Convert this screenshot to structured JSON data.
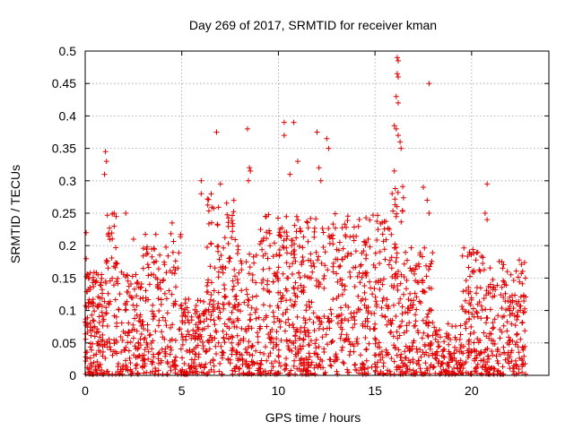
{
  "chart_data": {
    "type": "scatter",
    "title": "Day 269 of 2017, SRMTID for receiver kman",
    "xlabel": "GPS time / hours",
    "ylabel": "SRMTID / TECUs",
    "xlim": [
      0,
      24
    ],
    "ylim": [
      0,
      0.5
    ],
    "xticks": [
      0,
      5,
      10,
      15,
      20
    ],
    "yticks": [
      0,
      0.05,
      0.1,
      0.15,
      0.2,
      0.25,
      0.3,
      0.35,
      0.4,
      0.45,
      0.5
    ],
    "grid": true,
    "marker": "+",
    "color": "#e00000",
    "seed": 269,
    "series": [
      {
        "name": "SRMTID",
        "generated_clusters_note": "dense point cloud generated from these cluster descriptors",
        "clusters": [
          {
            "x0": 0.0,
            "x1": 1.0,
            "ymax": 0.16,
            "n": 140
          },
          {
            "x0": 1.0,
            "x1": 1.8,
            "ymax": 0.25,
            "n": 70
          },
          {
            "x0": 1.8,
            "x1": 3.0,
            "ymax": 0.16,
            "n": 110
          },
          {
            "x0": 3.0,
            "x1": 5.0,
            "ymax": 0.22,
            "n": 170
          },
          {
            "x0": 5.0,
            "x1": 6.2,
            "ymax": 0.12,
            "n": 110
          },
          {
            "x0": 6.2,
            "x1": 7.8,
            "ymax": 0.28,
            "n": 170
          },
          {
            "x0": 7.8,
            "x1": 9.0,
            "ymax": 0.2,
            "n": 110
          },
          {
            "x0": 9.0,
            "x1": 12.0,
            "ymax": 0.25,
            "n": 330
          },
          {
            "x0": 12.0,
            "x1": 15.8,
            "ymax": 0.25,
            "n": 330
          },
          {
            "x0": 15.8,
            "x1": 16.5,
            "ymax": 0.3,
            "n": 80
          },
          {
            "x0": 16.5,
            "x1": 18.0,
            "ymax": 0.2,
            "n": 150
          },
          {
            "x0": 18.0,
            "x1": 19.5,
            "ymax": 0.08,
            "n": 100
          },
          {
            "x0": 19.5,
            "x1": 21.0,
            "ymax": 0.2,
            "n": 150
          },
          {
            "x0": 21.0,
            "x1": 22.8,
            "ymax": 0.18,
            "n": 170
          }
        ],
        "highlights": [
          {
            "x": 0.05,
            "y": 0.22
          },
          {
            "x": 0.05,
            "y": 0.18
          },
          {
            "x": 1.05,
            "y": 0.345
          },
          {
            "x": 1.1,
            "y": 0.33
          },
          {
            "x": 1.0,
            "y": 0.31
          },
          {
            "x": 1.5,
            "y": 0.25
          },
          {
            "x": 1.6,
            "y": 0.245
          },
          {
            "x": 1.5,
            "y": 0.23
          },
          {
            "x": 2.1,
            "y": 0.25
          },
          {
            "x": 2.5,
            "y": 0.21
          },
          {
            "x": 4.5,
            "y": 0.235
          },
          {
            "x": 6.0,
            "y": 0.3
          },
          {
            "x": 6.0,
            "y": 0.28
          },
          {
            "x": 6.8,
            "y": 0.375
          },
          {
            "x": 7.0,
            "y": 0.295
          },
          {
            "x": 8.4,
            "y": 0.38
          },
          {
            "x": 8.5,
            "y": 0.32
          },
          {
            "x": 8.55,
            "y": 0.315
          },
          {
            "x": 8.45,
            "y": 0.3
          },
          {
            "x": 10.3,
            "y": 0.39
          },
          {
            "x": 10.8,
            "y": 0.39
          },
          {
            "x": 10.3,
            "y": 0.37
          },
          {
            "x": 10.6,
            "y": 0.31
          },
          {
            "x": 11.0,
            "y": 0.33
          },
          {
            "x": 12.0,
            "y": 0.375
          },
          {
            "x": 12.5,
            "y": 0.365
          },
          {
            "x": 12.6,
            "y": 0.35
          },
          {
            "x": 12.1,
            "y": 0.32
          },
          {
            "x": 12.2,
            "y": 0.3
          },
          {
            "x": 16.15,
            "y": 0.49
          },
          {
            "x": 16.2,
            "y": 0.485
          },
          {
            "x": 16.15,
            "y": 0.465
          },
          {
            "x": 16.2,
            "y": 0.46
          },
          {
            "x": 16.1,
            "y": 0.43
          },
          {
            "x": 16.2,
            "y": 0.42
          },
          {
            "x": 16.0,
            "y": 0.385
          },
          {
            "x": 16.1,
            "y": 0.38
          },
          {
            "x": 16.2,
            "y": 0.37
          },
          {
            "x": 16.3,
            "y": 0.36
          },
          {
            "x": 16.35,
            "y": 0.35
          },
          {
            "x": 16.0,
            "y": 0.315
          },
          {
            "x": 17.8,
            "y": 0.45
          },
          {
            "x": 17.5,
            "y": 0.29
          },
          {
            "x": 17.7,
            "y": 0.27
          },
          {
            "x": 17.8,
            "y": 0.25
          },
          {
            "x": 20.8,
            "y": 0.295
          },
          {
            "x": 20.7,
            "y": 0.25
          },
          {
            "x": 20.8,
            "y": 0.24
          }
        ],
        "zeros_x": [
          8.3,
          8.7,
          11.8,
          12.4,
          15.2,
          15.5,
          19.2,
          19.5,
          20.5,
          1.8
        ]
      }
    ]
  }
}
